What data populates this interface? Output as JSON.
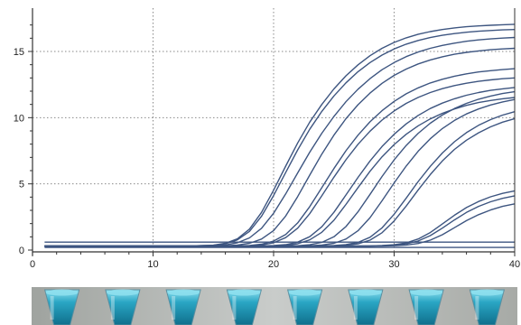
{
  "colors": {
    "curve": "#3d5580",
    "axis": "#333333",
    "grid": "#8a8a8a",
    "tube_fill": "#2aa6c4",
    "tube_highlight": "#8fe0ef",
    "strip_bg": "#c9ccca"
  },
  "tube_strip": {
    "count": 8
  },
  "chart_data": {
    "type": "line",
    "title": "",
    "xlabel": "",
    "ylabel": "",
    "xlim": [
      0,
      40
    ],
    "ylim": [
      -0.5,
      18
    ],
    "xticks": [
      0,
      10,
      20,
      30,
      40
    ],
    "yticks": [
      0,
      5,
      10,
      15
    ],
    "xtick_labels": [
      "0",
      "10",
      "20",
      "30",
      "40"
    ],
    "ytick_labels": [
      "0",
      "5",
      "10",
      "15"
    ],
    "grid": true,
    "x": [
      1,
      3,
      5,
      7,
      9,
      11,
      13,
      15,
      16,
      17,
      18,
      19,
      20,
      21,
      22,
      23,
      24,
      25,
      26,
      27,
      28,
      29,
      30,
      31,
      32,
      33,
      34,
      35,
      36,
      37,
      38,
      39,
      40
    ],
    "series": [
      {
        "values": [
          0.3,
          0.3,
          0.3,
          0.3,
          0.3,
          0.3,
          0.31,
          0.37,
          0.51,
          0.85,
          1.58,
          2.84,
          4.52,
          6.34,
          8.09,
          9.66,
          11.0,
          12.17,
          13.16,
          13.99,
          14.68,
          15.24,
          15.68,
          16.03,
          16.3,
          16.5,
          16.66,
          16.78,
          16.87,
          16.93,
          16.98,
          17.02,
          17.05
        ]
      },
      {
        "values": [
          0.3,
          0.3,
          0.3,
          0.3,
          0.3,
          0.3,
          0.31,
          0.36,
          0.48,
          0.77,
          1.41,
          2.55,
          4.12,
          5.86,
          7.57,
          9.12,
          10.47,
          11.64,
          12.63,
          13.47,
          14.16,
          14.73,
          15.19,
          15.55,
          15.83,
          16.05,
          16.22,
          16.35,
          16.45,
          16.53,
          16.58,
          16.63,
          16.66
        ]
      },
      {
        "values": [
          0.3,
          0.3,
          0.3,
          0.3,
          0.3,
          0.3,
          0.3,
          0.33,
          0.39,
          0.55,
          0.92,
          1.64,
          2.78,
          4.24,
          5.83,
          7.39,
          8.82,
          10.09,
          11.2,
          12.15,
          12.95,
          13.62,
          14.16,
          14.61,
          14.96,
          15.24,
          15.46,
          15.63,
          15.77,
          15.87,
          15.95,
          16.01,
          16.06
        ]
      },
      {
        "values": [
          0.3,
          0.3,
          0.3,
          0.3,
          0.3,
          0.3,
          0.3,
          0.31,
          0.33,
          0.38,
          0.51,
          0.83,
          1.47,
          2.57,
          4.04,
          5.66,
          7.25,
          8.68,
          9.92,
          10.98,
          11.86,
          12.59,
          13.19,
          13.67,
          14.06,
          14.36,
          14.6,
          14.79,
          14.93,
          15.04,
          15.13,
          15.19,
          15.24
        ]
      },
      {
        "values": [
          0.3,
          0.3,
          0.3,
          0.3,
          0.3,
          0.3,
          0.3,
          0.3,
          0.3,
          0.32,
          0.35,
          0.44,
          0.68,
          1.18,
          2.05,
          3.28,
          4.71,
          6.16,
          7.5,
          8.68,
          9.69,
          10.53,
          11.23,
          11.8,
          12.25,
          12.62,
          12.9,
          13.13,
          13.31,
          13.45,
          13.55,
          13.63,
          13.7
        ]
      },
      {
        "values": [
          0.3,
          0.3,
          0.3,
          0.3,
          0.3,
          0.3,
          0.3,
          0.3,
          0.3,
          0.31,
          0.33,
          0.39,
          0.55,
          0.94,
          1.66,
          2.75,
          4.1,
          5.5,
          6.82,
          7.99,
          8.98,
          9.82,
          10.51,
          11.08,
          11.53,
          11.9,
          12.19,
          12.42,
          12.6,
          12.74,
          12.85,
          12.94,
          13.0
        ]
      },
      {
        "values": [
          0.3,
          0.3,
          0.3,
          0.3,
          0.3,
          0.3,
          0.3,
          0.3,
          0.3,
          0.3,
          0.3,
          0.31,
          0.34,
          0.41,
          0.6,
          1.01,
          1.76,
          2.85,
          4.16,
          5.49,
          6.73,
          7.82,
          8.75,
          9.53,
          10.17,
          10.69,
          11.1,
          11.43,
          11.69,
          11.9,
          12.06,
          12.18,
          12.28
        ]
      },
      {
        "values": [
          0.3,
          0.3,
          0.3,
          0.3,
          0.3,
          0.3,
          0.3,
          0.3,
          0.3,
          0.3,
          0.3,
          0.31,
          0.32,
          0.36,
          0.48,
          0.77,
          1.34,
          2.25,
          3.44,
          4.72,
          5.95,
          7.04,
          7.97,
          8.75,
          9.39,
          9.91,
          10.33,
          10.66,
          10.93,
          11.14,
          11.3,
          11.43,
          11.52
        ]
      },
      {
        "values": [
          0.3,
          0.3,
          0.3,
          0.3,
          0.3,
          0.3,
          0.3,
          0.3,
          0.3,
          0.3,
          0.3,
          0.3,
          0.3,
          0.31,
          0.33,
          0.4,
          0.58,
          1.0,
          1.77,
          2.89,
          4.21,
          5.56,
          6.81,
          7.9,
          8.82,
          9.58,
          10.2,
          10.69,
          11.08,
          11.39,
          11.63,
          11.82,
          11.96
        ]
      },
      {
        "values": [
          0.3,
          0.3,
          0.3,
          0.3,
          0.3,
          0.3,
          0.3,
          0.3,
          0.3,
          0.3,
          0.3,
          0.3,
          0.3,
          0.3,
          0.31,
          0.33,
          0.38,
          0.51,
          0.83,
          1.46,
          2.45,
          3.72,
          5.07,
          6.35,
          7.47,
          8.41,
          9.18,
          9.79,
          10.28,
          10.66,
          10.96,
          11.19,
          11.37
        ]
      },
      {
        "values": [
          0.3,
          0.3,
          0.3,
          0.3,
          0.3,
          0.3,
          0.3,
          0.3,
          0.3,
          0.3,
          0.3,
          0.3,
          0.3,
          0.3,
          0.3,
          0.31,
          0.32,
          0.34,
          0.41,
          0.58,
          0.97,
          1.68,
          2.71,
          3.93,
          5.18,
          6.32,
          7.33,
          8.18,
          8.87,
          9.42,
          9.85,
          10.19,
          10.45
        ]
      },
      {
        "values": [
          0.3,
          0.3,
          0.3,
          0.3,
          0.3,
          0.3,
          0.3,
          0.3,
          0.3,
          0.3,
          0.3,
          0.3,
          0.3,
          0.3,
          0.3,
          0.3,
          0.31,
          0.32,
          0.36,
          0.47,
          0.75,
          1.31,
          2.2,
          3.33,
          4.55,
          5.7,
          6.73,
          7.6,
          8.3,
          8.86,
          9.31,
          9.66,
          9.93
        ]
      },
      {
        "values": [
          0.3,
          0.3,
          0.3,
          0.3,
          0.3,
          0.3,
          0.3,
          0.3,
          0.3,
          0.3,
          0.3,
          0.3,
          0.3,
          0.3,
          0.3,
          0.3,
          0.3,
          0.3,
          0.3,
          0.31,
          0.31,
          0.34,
          0.4,
          0.54,
          0.84,
          1.32,
          1.97,
          2.63,
          3.21,
          3.67,
          4.02,
          4.28,
          4.47
        ]
      },
      {
        "values": [
          0.3,
          0.3,
          0.3,
          0.3,
          0.3,
          0.3,
          0.3,
          0.3,
          0.3,
          0.3,
          0.3,
          0.3,
          0.3,
          0.3,
          0.3,
          0.3,
          0.3,
          0.3,
          0.3,
          0.3,
          0.31,
          0.33,
          0.37,
          0.47,
          0.69,
          1.09,
          1.66,
          2.28,
          2.84,
          3.3,
          3.65,
          3.91,
          4.1
        ]
      },
      {
        "values": [
          0.3,
          0.3,
          0.3,
          0.3,
          0.3,
          0.3,
          0.3,
          0.3,
          0.3,
          0.3,
          0.3,
          0.3,
          0.3,
          0.3,
          0.3,
          0.3,
          0.3,
          0.3,
          0.3,
          0.3,
          0.3,
          0.31,
          0.33,
          0.38,
          0.5,
          0.75,
          1.16,
          1.69,
          2.22,
          2.67,
          3.03,
          3.3,
          3.49
        ]
      },
      {
        "values": [
          0.6,
          0.6,
          0.6,
          0.6,
          0.6,
          0.6,
          0.6,
          0.6,
          0.6,
          0.6,
          0.6,
          0.6,
          0.6,
          0.6,
          0.6,
          0.6,
          0.6,
          0.6,
          0.6,
          0.6,
          0.6,
          0.6,
          0.6,
          0.6,
          0.6,
          0.6,
          0.6,
          0.6,
          0.6,
          0.6,
          0.6,
          0.6,
          0.6
        ]
      },
      {
        "values": [
          0.2,
          0.2,
          0.2,
          0.2,
          0.2,
          0.2,
          0.2,
          0.2,
          0.2,
          0.2,
          0.2,
          0.2,
          0.2,
          0.2,
          0.2,
          0.2,
          0.2,
          0.2,
          0.2,
          0.2,
          0.2,
          0.2,
          0.2,
          0.2,
          0.2,
          0.2,
          0.2,
          0.2,
          0.2,
          0.2,
          0.2,
          0.2,
          0.2
        ]
      }
    ]
  }
}
